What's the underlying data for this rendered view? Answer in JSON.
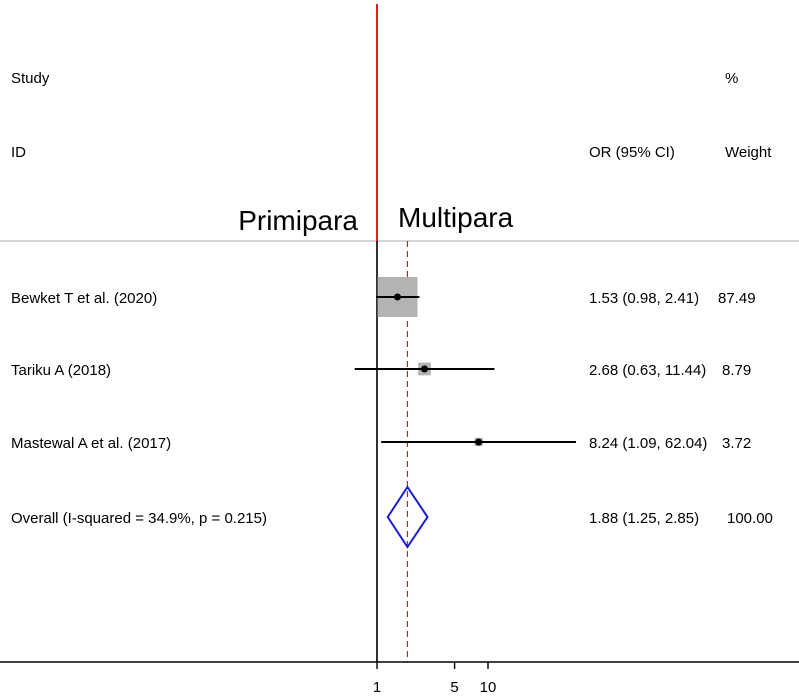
{
  "chart_data": {
    "type": "forest",
    "header": {
      "study_line1": "Study",
      "study_line2": "ID",
      "effect_label": "OR (95% CI)",
      "weight_line1": "%",
      "weight_line2": "Weight"
    },
    "side_labels": {
      "left": "Primipara",
      "right": "Multipara"
    },
    "null_value": 1,
    "x_scale": "log",
    "x_ticks": [
      {
        "value": 1,
        "label": "1"
      },
      {
        "value": 5,
        "label": "5"
      },
      {
        "value": 10,
        "label": "10"
      }
    ],
    "studies": [
      {
        "label": "Bewket T et al. (2020)",
        "or": 1.53,
        "lower": 0.98,
        "upper": 2.41,
        "ci_text": "1.53 (0.98, 2.41)",
        "weight": 87.49,
        "weight_text": "87.49"
      },
      {
        "label": "Tariku A (2018)",
        "or": 2.68,
        "lower": 0.63,
        "upper": 11.44,
        "ci_text": "2.68 (0.63, 11.44)",
        "weight": 8.79,
        "weight_text": "8.79"
      },
      {
        "label": "Mastewal A et al. (2017)",
        "or": 8.24,
        "lower": 1.09,
        "upper": 62.04,
        "ci_text": "8.24 (1.09, 62.04)",
        "weight": 3.72,
        "weight_text": "3.72"
      }
    ],
    "overall": {
      "label": "Overall  (I-squared = 34.9%, p = 0.215)",
      "or": 1.88,
      "lower": 1.25,
      "upper": 2.85,
      "ci_text": "1.88 (1.25, 2.85)",
      "weight_text": "100.00"
    },
    "colors": {
      "null_line": "#e41a1c",
      "overall_line": "#8b3a3a",
      "diamond": "#1a1ad6",
      "box": "#b3b3b3",
      "axis": "#000000",
      "separator": "#bdbdbd"
    }
  }
}
